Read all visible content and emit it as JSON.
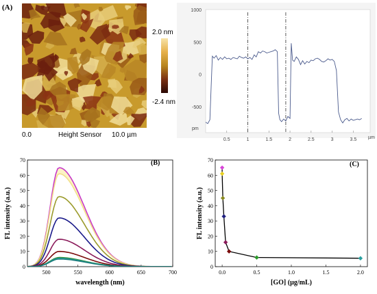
{
  "panel_labels": {
    "a": "(A)",
    "b": "(B)",
    "c": "(C)"
  },
  "afm": {
    "scale_top": "2.0 nm",
    "scale_bottom": "-2.4 nm",
    "axis_start": "0.0",
    "channel": "Height Sensor",
    "axis_end": "10.0 µm"
  },
  "colors": {
    "afm_dark": "#6b1f0e",
    "afm_mid": "#b8861e",
    "afm_light": "#f0d27a",
    "profile_line": "#4a5a8c",
    "fl_curves": [
      "#c838c8",
      "#f2e08a",
      "#9a9a2a",
      "#1a1a8a",
      "#8a1a5a",
      "#7a0a0a",
      "#2a8a2a",
      "#2aa0a0",
      "#1a7a7a"
    ]
  },
  "chart_data": [
    {
      "type": "line",
      "panel": "A-profile",
      "xlabel": "µm",
      "ylabel": "pm",
      "xlim": [
        0,
        3.9
      ],
      "ylim": [
        -900,
        1000
      ],
      "x_ticks": [
        "0.5",
        "1",
        "1.5",
        "2",
        "2.5",
        "3",
        "3.5"
      ],
      "y_ticks": [
        "1000",
        "500",
        "0",
        "-500"
      ],
      "markers_x": [
        1.0,
        1.9
      ],
      "series": [
        {
          "x": [
            0.0,
            0.05,
            0.1,
            0.13,
            0.16,
            0.2,
            0.25,
            0.3,
            0.35,
            0.4,
            0.45,
            0.5,
            0.55,
            0.6,
            0.65,
            0.7,
            0.75,
            0.8,
            0.85,
            0.9,
            0.95,
            1.0,
            1.05,
            1.1,
            1.15,
            1.2,
            1.25,
            1.3,
            1.35,
            1.4,
            1.45,
            1.5,
            1.55,
            1.6,
            1.65,
            1.7,
            1.73,
            1.76,
            1.8,
            1.85,
            1.9,
            1.95,
            2.0,
            2.03,
            2.06,
            2.1,
            2.15,
            2.2,
            2.25,
            2.3,
            2.35,
            2.4,
            2.45,
            2.5,
            2.55,
            2.6,
            2.65,
            2.7,
            2.75,
            2.8,
            2.85,
            2.9,
            2.95,
            3.0,
            3.05,
            3.1,
            3.15,
            3.2,
            3.25,
            3.3,
            3.35,
            3.4,
            3.45,
            3.5,
            3.55,
            3.6,
            3.65,
            3.7
          ],
          "y": [
            -740,
            -760,
            -700,
            -200,
            280,
            250,
            290,
            220,
            260,
            230,
            270,
            240,
            250,
            230,
            260,
            250,
            240,
            280,
            260,
            250,
            270,
            240,
            260,
            230,
            300,
            270,
            350,
            330,
            360,
            350,
            330,
            340,
            350,
            360,
            380,
            350,
            -600,
            -700,
            -730,
            -690,
            -720,
            -650,
            -680,
            480,
            220,
            200,
            270,
            230,
            150,
            210,
            160,
            200,
            180,
            220,
            210,
            240,
            250,
            230,
            200,
            190,
            210,
            240,
            220,
            230,
            200,
            60,
            -580,
            -700,
            -750,
            -700,
            -680,
            -720,
            -690,
            -710,
            -700,
            -690,
            -700,
            -680
          ]
        }
      ]
    },
    {
      "type": "line",
      "panel": "B",
      "xlabel": "wavelength (nm)",
      "ylabel": "FL intensity (a.u.)",
      "xlim": [
        470,
        700
      ],
      "ylim": [
        0,
        70
      ],
      "x_ticks": [
        500,
        550,
        600,
        650,
        700
      ],
      "y_ticks": [
        0,
        10,
        20,
        30,
        40,
        50,
        60,
        70
      ],
      "peak_x": 520,
      "series": [
        {
          "peak": 65
        },
        {
          "peak": 61
        },
        {
          "peak": 46
        },
        {
          "peak": 32
        },
        {
          "peak": 18
        },
        {
          "peak": 10
        },
        {
          "peak": 6
        },
        {
          "peak": 5.5
        },
        {
          "peak": 5
        }
      ]
    },
    {
      "type": "scatter",
      "panel": "C",
      "xlabel": "[GO] (µg/mL)",
      "ylabel": "FL intensity (a.u.)",
      "xlim": [
        -0.1,
        2.1
      ],
      "ylim": [
        0,
        70
      ],
      "x_ticks": [
        "0.0",
        "0.5",
        "1.0",
        "1.5",
        "2.0"
      ],
      "y_ticks": [
        0,
        10,
        20,
        30,
        40,
        50,
        60,
        70
      ],
      "points": [
        {
          "x": 0.0,
          "y": 65,
          "color": "#d844d8"
        },
        {
          "x": 0.0,
          "y": 61,
          "color": "#e8d020"
        },
        {
          "x": 0.01,
          "y": 45,
          "color": "#8a8a20"
        },
        {
          "x": 0.025,
          "y": 33,
          "color": "#202080"
        },
        {
          "x": 0.05,
          "y": 16,
          "color": "#8a1a5a"
        },
        {
          "x": 0.1,
          "y": 10,
          "color": "#7a0a0a"
        },
        {
          "x": 0.5,
          "y": 6,
          "color": "#2a9a2a"
        },
        {
          "x": 2.0,
          "y": 5.5,
          "color": "#2aa0a0"
        }
      ]
    }
  ]
}
